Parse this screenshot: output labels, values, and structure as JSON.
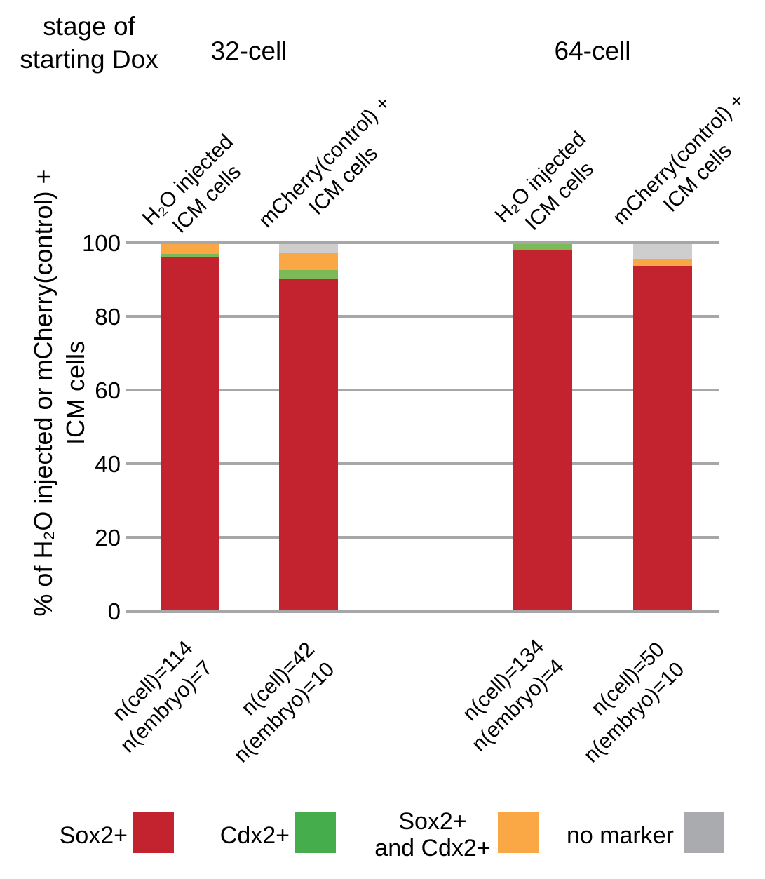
{
  "figure_title": {
    "line1": "stage of",
    "line2": "starting Dox"
  },
  "group_headers": [
    "32-cell",
    "64-cell"
  ],
  "y_axis": {
    "label_line1": "% of H₂O injected or mCherry(control) +",
    "label_line2": "ICM cells",
    "tick_labels": [
      "100",
      "80",
      "60",
      "40",
      "20",
      "0"
    ]
  },
  "colors": {
    "grid": "#a7a7a7",
    "bar_sox2": "#c2232e",
    "bar_cdx2": "#7cba58",
    "bar_both": "#f9a845",
    "bar_none": "#cecece",
    "legend_sox2": "#c2232e",
    "legend_cdx2": "#45ad4c",
    "legend_both": "#f9a845",
    "legend_none": "#a9abae"
  },
  "legend": {
    "items": [
      {
        "key": "sox2",
        "label": "Sox2+"
      },
      {
        "key": "cdx2",
        "label": "Cdx2+"
      },
      {
        "key": "both",
        "label_line1": "Sox2+",
        "label_line2": "and Cdx2+"
      },
      {
        "key": "none",
        "label": "no marker"
      }
    ]
  },
  "chart_data": {
    "type": "bar",
    "subtype": "stacked-percentage",
    "title": "stage of starting Dox",
    "ylabel": "% of H₂O injected or mCherry(control) + ICM cells",
    "ylim": [
      0,
      100
    ],
    "yticks": [
      0,
      20,
      40,
      60,
      80,
      100
    ],
    "grid": "horizontal",
    "legend_position": "bottom",
    "groups": [
      "32-cell",
      "64-cell"
    ],
    "series_order_bottom_to_top": [
      "Sox2+",
      "Cdx2+",
      "Sox2+ and Cdx2+",
      "no marker"
    ],
    "bars": [
      {
        "group": "32-cell",
        "label_line1": "H₂O injected",
        "label_line2": "ICM cells",
        "n_cell": "n(cell)=114",
        "n_embryo": "n(embryo)=7",
        "segments": {
          "sox2": 96.5,
          "cdx2": 0.9,
          "both": 2.6,
          "none": 0
        }
      },
      {
        "group": "32-cell",
        "label_line1": "mCherry(control) +",
        "label_line2": "ICM cells",
        "n_cell": "n(cell)=42",
        "n_embryo": "n(embryo)=10",
        "segments": {
          "sox2": 90.5,
          "cdx2": 2.4,
          "both": 4.8,
          "none": 2.4
        }
      },
      {
        "group": "64-cell",
        "label_line1": "H₂O injected",
        "label_line2": "ICM cells",
        "n_cell": "n(cell)=134",
        "n_embryo": "n(embryo)=4",
        "segments": {
          "sox2": 98.5,
          "cdx2": 1.5,
          "both": 0,
          "none": 0
        }
      },
      {
        "group": "64-cell",
        "label_line1": "mCherry(control) +",
        "label_line2": "ICM cells",
        "n_cell": "n(cell)=50",
        "n_embryo": "n(embryo)=10",
        "segments": {
          "sox2": 94,
          "cdx2": 0,
          "both": 2,
          "none": 4
        }
      }
    ]
  }
}
